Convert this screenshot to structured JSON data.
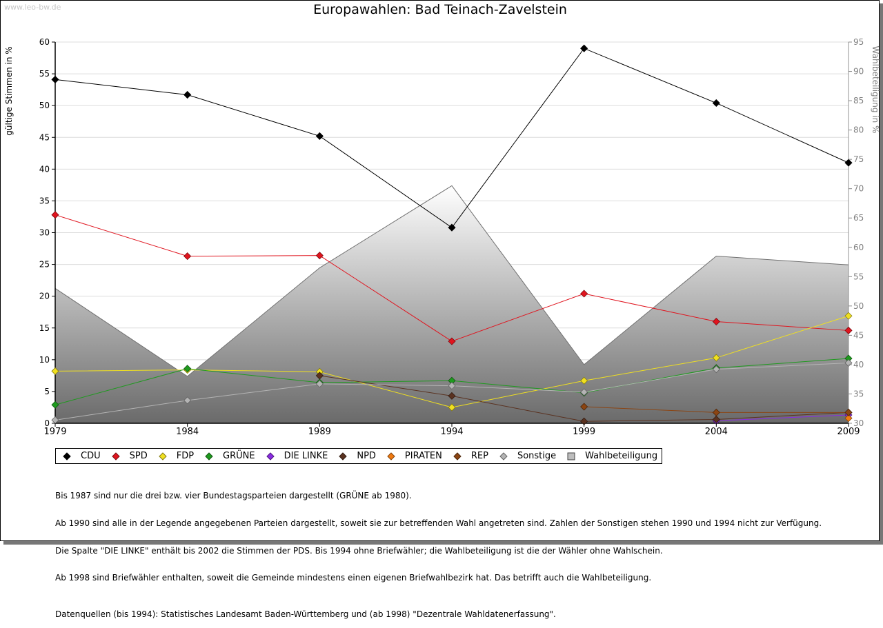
{
  "watermark": "www.leo-bw.de",
  "title": "Europawahlen: Bad Teinach-Zavelstein",
  "chart_data": {
    "type": "line",
    "title": "Europawahlen: Bad Teinach-Zavelstein",
    "ylabel": "gültige Stimmen in %",
    "y2label": "Wahlbeteiligung in %",
    "ylim": [
      0,
      60
    ],
    "y2lim": [
      30,
      95
    ],
    "yticks": [
      "0",
      "5",
      "10",
      "15",
      "20",
      "25",
      "30",
      "35",
      "40",
      "45",
      "50",
      "55",
      "60"
    ],
    "y2ticks": [
      "30",
      "35",
      "40",
      "45",
      "50",
      "55",
      "60",
      "65",
      "70",
      "75",
      "80",
      "85",
      "90",
      "95"
    ],
    "x": [
      "1979",
      "1984",
      "1989",
      "1994",
      "1999",
      "2004",
      "2009"
    ],
    "grid": true,
    "legend_position": "bottom",
    "series": [
      {
        "name": "CDU",
        "color": "#000000",
        "values": [
          54.1,
          51.7,
          45.2,
          30.8,
          59.0,
          50.4,
          41.0
        ]
      },
      {
        "name": "SPD",
        "color": "#e0141e",
        "values": [
          32.8,
          26.3,
          26.4,
          12.9,
          20.4,
          16.0,
          14.6
        ]
      },
      {
        "name": "FDP",
        "color": "#f0e020",
        "values": [
          8.2,
          8.4,
          8.1,
          2.5,
          6.7,
          10.3,
          16.9
        ]
      },
      {
        "name": "GRÜNE",
        "color": "#1e9a1e",
        "values": [
          2.9,
          8.6,
          6.4,
          6.7,
          4.8,
          8.7,
          10.2
        ]
      },
      {
        "name": "DIE LINKE",
        "color": "#8a2be2",
        "values": [
          null,
          null,
          null,
          null,
          null,
          0.4,
          1.3
        ]
      },
      {
        "name": "NPD",
        "color": "#5a3220",
        "values": [
          null,
          null,
          7.5,
          4.3,
          0.3,
          0.6,
          1.7
        ]
      },
      {
        "name": "PIRATEN",
        "color": "#f07a10",
        "values": [
          null,
          null,
          null,
          null,
          null,
          null,
          0.8
        ]
      },
      {
        "name": "REP",
        "color": "#8b4513",
        "values": [
          null,
          null,
          null,
          null,
          2.6,
          1.7,
          1.7
        ]
      },
      {
        "name": "Sonstige",
        "color": "#b4b4b4",
        "values": [
          0.5,
          3.6,
          6.2,
          5.9,
          4.9,
          8.5,
          9.5
        ]
      }
    ],
    "turnout": {
      "name": "Wahlbeteiligung",
      "values": [
        53.0,
        38.0,
        56.5,
        70.5,
        40.0,
        58.5,
        57.0
      ]
    }
  },
  "legend": [
    {
      "label": "CDU",
      "color": "#000000",
      "shape": "diamond"
    },
    {
      "label": "SPD",
      "color": "#e0141e",
      "shape": "diamond"
    },
    {
      "label": "FDP",
      "color": "#f0e020",
      "shape": "diamond"
    },
    {
      "label": "GRÜNE",
      "color": "#1e9a1e",
      "shape": "diamond"
    },
    {
      "label": "DIE LINKE",
      "color": "#8a2be2",
      "shape": "diamond"
    },
    {
      "label": "NPD",
      "color": "#5a3220",
      "shape": "diamond"
    },
    {
      "label": "PIRATEN",
      "color": "#f07a10",
      "shape": "diamond"
    },
    {
      "label": "REP",
      "color": "#8b4513",
      "shape": "diamond"
    },
    {
      "label": "Sonstige",
      "color": "#b4b4b4",
      "shape": "diamond"
    },
    {
      "label": "Wahlbeteiligung",
      "color": "#bdbdbd",
      "shape": "square"
    }
  ],
  "notes": {
    "line1": "Bis 1987 sind nur die drei bzw. vier Bundestagsparteien dargestellt (GRÜNE ab 1980).",
    "line2": "Ab 1990 sind alle in der Legende angegebenen Parteien dargestellt, soweit sie zur betreffenden Wahl angetreten sind. Zahlen der Sonstigen stehen 1990 und 1994 nicht zur Verfügung.",
    "line3": "Die Spalte \"DIE LINKE\" enthält bis 2002 die Stimmen der PDS. Bis 1994 ohne Briefwähler; die Wahlbeteiligung ist die der Wähler ohne Wahlschein.",
    "line4": "Ab 1998 sind Briefwähler enthalten, soweit die Gemeinde mindestens einen eigenen Briefwahlbezirk hat. Das betrifft auch die Wahlbeteiligung.",
    "source": "Datenquellen (bis 1994): Statistisches Landesamt Baden-Württemberg und (ab 1998) \"Dezentrale Wahldatenerfassung\"."
  }
}
